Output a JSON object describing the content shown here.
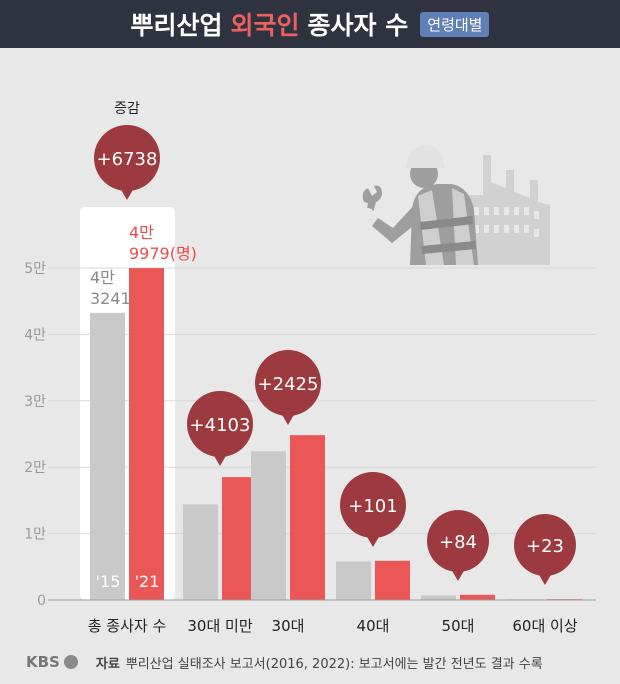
{
  "header": {
    "title_part1": "뿌리산업",
    "title_highlight": "외국인",
    "title_part2": "종사자 수",
    "badge": "연령대별"
  },
  "chart_data": {
    "type": "bar",
    "categories": [
      "총 종사자 수",
      "30대 미만",
      "30대",
      "40대",
      "50대",
      "60대 이상"
    ],
    "series": [
      {
        "name": "'15",
        "color": "#c9c9c9",
        "values": [
          43241,
          14400,
          22400,
          5800,
          700,
          100
        ]
      },
      {
        "name": "'21",
        "color": "#eb5757",
        "values": [
          49979,
          18503,
          24825,
          5901,
          784,
          123
        ]
      }
    ],
    "changes": [
      "+6738",
      "+4103",
      "+2425",
      "+101",
      "+84",
      "+23"
    ],
    "change_header": "증감",
    "y_ticks": [
      "0",
      "1만",
      "2만",
      "3만",
      "4만",
      "5만"
    ],
    "ylim": [
      0,
      50000
    ],
    "total_labels": {
      "2015": [
        "4만",
        "3241"
      ],
      "2021": [
        "4만",
        "9979(명)"
      ]
    },
    "bubble_color": "#9c3a40"
  },
  "footer": {
    "logo": "KBS",
    "source_label": "자료",
    "source_text": "뿌리산업 실태조사 보고서(2016, 2022): 보고서에는 발간 전년도 결과 수록"
  }
}
